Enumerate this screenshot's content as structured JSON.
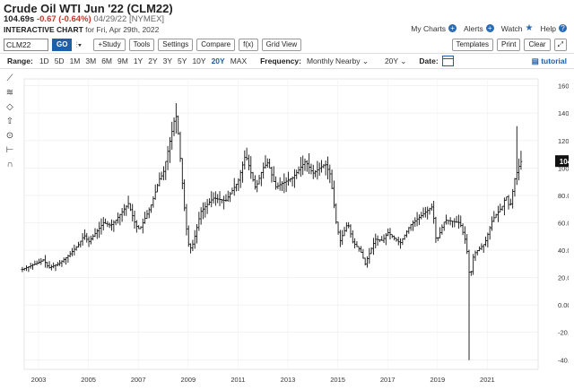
{
  "header": {
    "title": "Crude Oil WTI Jun '22 (CLM22)",
    "price": "104.69s",
    "change": "-0.67 (-0.64%)",
    "date": "04/29/22 [NYMEX]",
    "subtitle_bold": "INTERACTIVE CHART",
    "subtitle_rest": "for Fri, Apr 29th, 2022"
  },
  "toplinks": {
    "my_charts": "My Charts",
    "alerts": "Alerts",
    "watch": "Watch",
    "help": "Help"
  },
  "toolbar": {
    "symbol_value": "CLM22",
    "go": "GO",
    "study": "+Study",
    "tools": "Tools",
    "settings": "Settings",
    "compare": "Compare",
    "fx": "f(x)",
    "grid_view": "Grid View",
    "templates": "Templates",
    "print": "Print",
    "clear": "Clear"
  },
  "rangebar": {
    "label": "Range:",
    "ranges": [
      "1D",
      "5D",
      "1M",
      "3M",
      "6M",
      "9M",
      "1Y",
      "2Y",
      "3Y",
      "5Y",
      "10Y",
      "20Y",
      "MAX"
    ],
    "selected": "20Y",
    "frequency_label": "Frequency:",
    "frequency_value": "Monthly Nearby",
    "period_value": "20Y",
    "date_label": "Date:",
    "tutorial": "tutorial"
  },
  "sidebar_icons": [
    "crosshair-icon",
    "fibonacci-icon",
    "shape-icon",
    "arrow-up-icon",
    "measure-icon",
    "range-icon",
    "magnet-icon"
  ],
  "chart_data": {
    "type": "ohlc-monthly",
    "ylim": [
      -47,
      165
    ],
    "yticks": [
      "160.00",
      "140.00",
      "120.00",
      "100.00",
      "80.00",
      "60.00",
      "40.00",
      "20.00",
      "0.00",
      "-20.00",
      "-40.00"
    ],
    "xticks": [
      "2003",
      "2005",
      "2007",
      "2009",
      "2011",
      "2013",
      "2015",
      "2017",
      "2019",
      "2021"
    ],
    "last_price_label": "104.69",
    "last_price": 104.69,
    "anchors": [
      [
        2002.35,
        26
      ],
      [
        2002.6,
        28
      ],
      [
        2003.0,
        31
      ],
      [
        2003.2,
        33
      ],
      [
        2003.4,
        27
      ],
      [
        2003.8,
        30
      ],
      [
        2004.2,
        36
      ],
      [
        2004.6,
        44
      ],
      [
        2004.83,
        51
      ],
      [
        2005.0,
        46
      ],
      [
        2005.6,
        60
      ],
      [
        2005.9,
        58
      ],
      [
        2006.1,
        62
      ],
      [
        2006.6,
        74
      ],
      [
        2006.9,
        58
      ],
      [
        2007.05,
        55
      ],
      [
        2007.5,
        72
      ],
      [
        2007.85,
        92
      ],
      [
        2008.0,
        96
      ],
      [
        2008.5,
        140
      ],
      [
        2008.6,
        125
      ],
      [
        2008.9,
        60
      ],
      [
        2009.05,
        40
      ],
      [
        2009.2,
        45
      ],
      [
        2009.5,
        68
      ],
      [
        2010.0,
        78
      ],
      [
        2010.5,
        76
      ],
      [
        2011.0,
        90
      ],
      [
        2011.3,
        110
      ],
      [
        2011.7,
        85
      ],
      [
        2012.0,
        100
      ],
      [
        2012.2,
        104
      ],
      [
        2012.5,
        86
      ],
      [
        2012.9,
        90
      ],
      [
        2013.2,
        93
      ],
      [
        2013.7,
        105
      ],
      [
        2014.0,
        96
      ],
      [
        2014.5,
        103
      ],
      [
        2014.7,
        95
      ],
      [
        2014.95,
        58
      ],
      [
        2015.1,
        47
      ],
      [
        2015.4,
        60
      ],
      [
        2015.6,
        46
      ],
      [
        2015.9,
        40
      ],
      [
        2016.1,
        30
      ],
      [
        2016.5,
        48
      ],
      [
        2016.8,
        47
      ],
      [
        2017.0,
        53
      ],
      [
        2017.5,
        45
      ],
      [
        2017.9,
        58
      ],
      [
        2018.2,
        63
      ],
      [
        2018.8,
        72
      ],
      [
        2018.95,
        46
      ],
      [
        2019.3,
        62
      ],
      [
        2019.9,
        60
      ],
      [
        2020.15,
        45
      ],
      [
        2020.3,
        18
      ],
      [
        2020.45,
        37
      ],
      [
        2020.9,
        45
      ],
      [
        2021.2,
        62
      ],
      [
        2021.6,
        72
      ],
      [
        2021.75,
        80
      ],
      [
        2021.9,
        70
      ],
      [
        2022.1,
        92
      ],
      [
        2022.33,
        104.69
      ]
    ],
    "extremes": [
      {
        "x": 2008.5,
        "high": 147.3,
        "low": 126
      },
      {
        "x": 2020.3,
        "high": 34,
        "low": -40.3
      },
      {
        "x": 2022.2,
        "high": 130.5,
        "low": 95
      }
    ]
  }
}
